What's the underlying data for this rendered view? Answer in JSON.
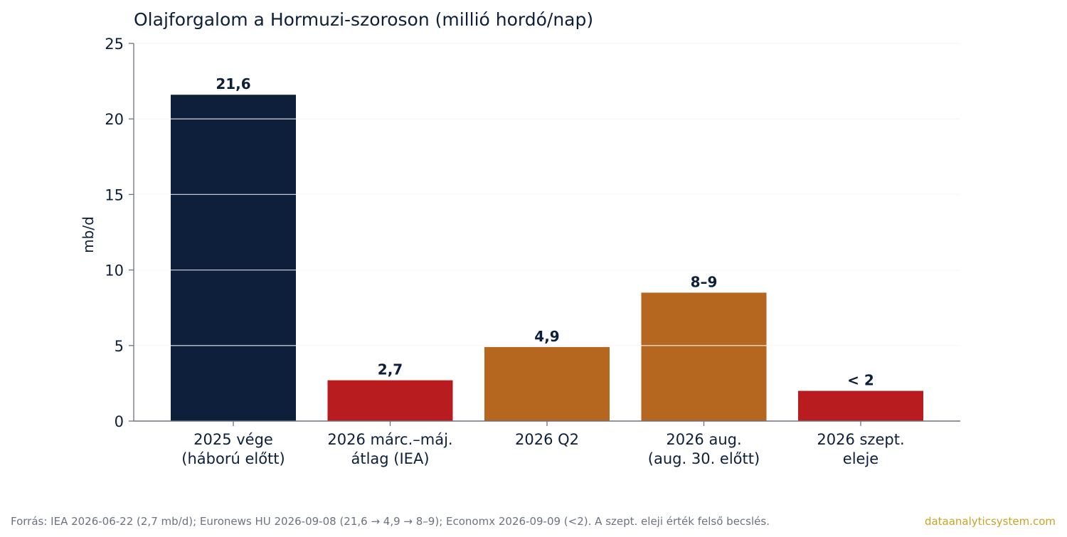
{
  "chart_data": {
    "type": "bar",
    "title": "Olajforgalom a Hormuzi-szoroson (millió hordó/nap)",
    "xlabel": "",
    "ylabel": "mb/d",
    "ylim": [
      0,
      25
    ],
    "yticks": [
      "0",
      "5",
      "10",
      "15",
      "20",
      "25"
    ],
    "grid": "horizontal",
    "categories": [
      [
        "2025 vége",
        "(háború előtt)"
      ],
      [
        "2026 márc.–máj.",
        "átlag (IEA)"
      ],
      [
        "2026 Q2"
      ],
      [
        "2026 aug.",
        "(aug. 30. előtt)"
      ],
      [
        "2026 szept.",
        "eleje"
      ]
    ],
    "values": [
      21.6,
      2.7,
      4.9,
      8.5,
      2.0
    ],
    "data_labels": [
      "21,6",
      "2,7",
      "4,9",
      "8–9",
      "< 2"
    ],
    "colors": [
      "#0d1f3a",
      "#b91c1f",
      "#b5661f",
      "#b5661f",
      "#b91c1f"
    ]
  },
  "footer": {
    "source": "Forrás: IEA 2026-06-22 (2,7 mb/d); Euronews HU 2026-09-08 (21,6 → 4,9 → 8–9); Economx 2026-09-09 (<2). A szept. eleji érték felső becslés.",
    "brand": "dataanalyticsystem.com"
  }
}
